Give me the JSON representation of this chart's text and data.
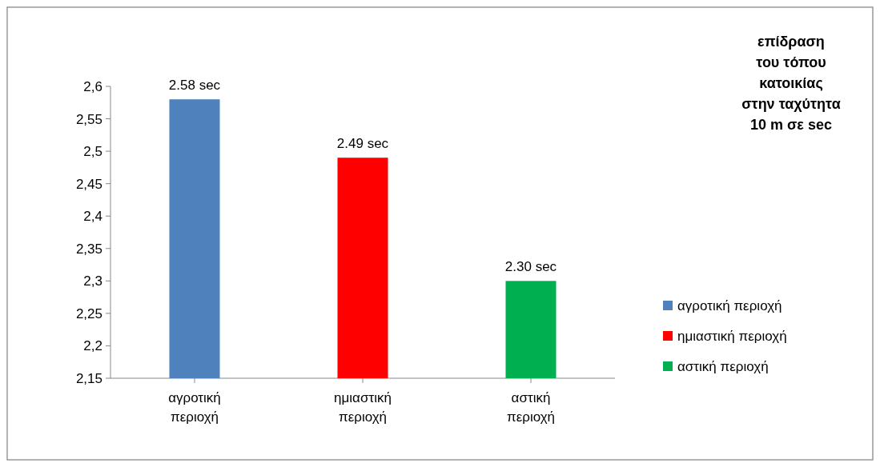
{
  "chart_data": {
    "type": "bar",
    "title": "επίδραση\nτου τόπου\nκατοικίας\nστην ταχύτητα\n10 m σε sec",
    "categories": [
      "αγροτική περιοχή",
      "ημιαστική περιοχή",
      "αστική περιοχή"
    ],
    "series": [
      {
        "name": "αγροτική περιοχή",
        "color": "#4f81bd",
        "values": [
          2.58,
          null,
          null
        ],
        "value_labels": [
          "2.58 sec",
          null,
          null
        ]
      },
      {
        "name": "ημιαστική περιοχή",
        "color": "#ff0000",
        "values": [
          null,
          2.49,
          null
        ],
        "value_labels": [
          null,
          "2.49 sec",
          null
        ]
      },
      {
        "name": "αστική περιοχή",
        "color": "#00b050",
        "values": [
          null,
          null,
          2.3
        ],
        "value_labels": [
          null,
          null,
          "2.30 sec"
        ]
      }
    ],
    "ylim": [
      2.15,
      2.6
    ],
    "yticks": [
      {
        "value": 2.15,
        "label": "2,15"
      },
      {
        "value": 2.2,
        "label": "2,2"
      },
      {
        "value": 2.25,
        "label": "2,25"
      },
      {
        "value": 2.3,
        "label": "2,3"
      },
      {
        "value": 2.35,
        "label": "2,35"
      },
      {
        "value": 2.4,
        "label": "2,4"
      },
      {
        "value": 2.45,
        "label": "2,45"
      },
      {
        "value": 2.5,
        "label": "2,5"
      },
      {
        "value": 2.55,
        "label": "2,55"
      },
      {
        "value": 2.6,
        "label": "2,6"
      }
    ],
    "legend": "right"
  }
}
